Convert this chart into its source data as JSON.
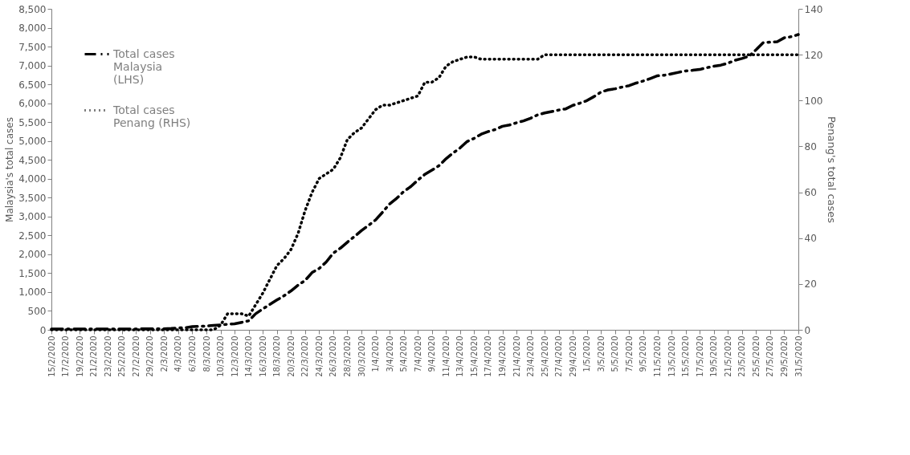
{
  "chart_data": {
    "type": "line",
    "ylabel": "Malaysia's total cases",
    "y2label": "Penang's total cases",
    "x": [
      "2020-02-15",
      "2020-02-16",
      "2020-02-17",
      "2020-02-18",
      "2020-02-19",
      "2020-02-20",
      "2020-02-21",
      "2020-02-22",
      "2020-02-23",
      "2020-02-24",
      "2020-02-25",
      "2020-02-26",
      "2020-02-27",
      "2020-02-28",
      "2020-02-29",
      "2020-03-01",
      "2020-03-02",
      "2020-03-03",
      "2020-03-04",
      "2020-03-05",
      "2020-03-06",
      "2020-03-07",
      "2020-03-08",
      "2020-03-09",
      "2020-03-10",
      "2020-03-11",
      "2020-03-12",
      "2020-03-13",
      "2020-03-14",
      "2020-03-15",
      "2020-03-16",
      "2020-03-17",
      "2020-03-18",
      "2020-03-19",
      "2020-03-20",
      "2020-03-21",
      "2020-03-22",
      "2020-03-23",
      "2020-03-24",
      "2020-03-25",
      "2020-03-26",
      "2020-03-27",
      "2020-03-28",
      "2020-03-29",
      "2020-03-30",
      "2020-03-31",
      "2020-04-01",
      "2020-04-02",
      "2020-04-03",
      "2020-04-04",
      "2020-04-05",
      "2020-04-06",
      "2020-04-07",
      "2020-04-08",
      "2020-04-09",
      "2020-04-10",
      "2020-04-11",
      "2020-04-12",
      "2020-04-13",
      "2020-04-14",
      "2020-04-15",
      "2020-04-16",
      "2020-04-17",
      "2020-04-18",
      "2020-04-19",
      "2020-04-20",
      "2020-04-21",
      "2020-04-22",
      "2020-04-23",
      "2020-04-24",
      "2020-04-25",
      "2020-04-26",
      "2020-04-27",
      "2020-04-28",
      "2020-04-29",
      "2020-04-30",
      "2020-05-01",
      "2020-05-02",
      "2020-05-03",
      "2020-05-04",
      "2020-05-05",
      "2020-05-06",
      "2020-05-07",
      "2020-05-08",
      "2020-05-09",
      "2020-05-10",
      "2020-05-11",
      "2020-05-12",
      "2020-05-13",
      "2020-05-14",
      "2020-05-15",
      "2020-05-16",
      "2020-05-17",
      "2020-05-18",
      "2020-05-19",
      "2020-05-20",
      "2020-05-21",
      "2020-05-22",
      "2020-05-23",
      "2020-05-24",
      "2020-05-25",
      "2020-05-26",
      "2020-05-27",
      "2020-05-28",
      "2020-05-29",
      "2020-05-30",
      "2020-05-31"
    ],
    "series": [
      {
        "name": "Total cases Malaysia (LHS)",
        "color": "#000000",
        "line_style": "dashed",
        "values": [
          22,
          22,
          22,
          22,
          22,
          22,
          22,
          22,
          22,
          22,
          22,
          23,
          23,
          25,
          25,
          29,
          29,
          36,
          50,
          55,
          83,
          93,
          99,
          117,
          129,
          149,
          158,
          197,
          238,
          428,
          553,
          673,
          790,
          900,
          1030,
          1183,
          1306,
          1518,
          1624,
          1796,
          2031,
          2161,
          2320,
          2470,
          2626,
          2766,
          2908,
          3116,
          3333,
          3483,
          3662,
          3793,
          3963,
          4119,
          4228,
          4346,
          4530,
          4683,
          4817,
          4987,
          5072,
          5182,
          5251,
          5305,
          5389,
          5425,
          5482,
          5532,
          5603,
          5691,
          5742,
          5780,
          5820,
          5851,
          5945,
          6002,
          6071,
          6176,
          6298,
          6353,
          6383,
          6428,
          6467,
          6535,
          6589,
          6656,
          6726,
          6742,
          6779,
          6819,
          6855,
          6872,
          6894,
          6941,
          6978,
          7009,
          7059,
          7137,
          7185,
          7245,
          7417,
          7604,
          7619,
          7629,
          7732,
          7762,
          7819
        ]
      },
      {
        "name": "Total cases Penang (RHS)",
        "color": "#000000",
        "line_style": "dotted",
        "axis": "y2",
        "values": [
          0,
          0,
          0,
          0,
          0,
          0,
          0,
          0,
          0,
          0,
          0,
          0,
          0,
          0,
          0,
          0,
          0,
          0,
          0,
          0,
          0,
          0,
          0,
          0,
          2,
          7,
          7,
          7,
          6,
          11,
          16,
          22,
          28,
          31,
          35,
          42,
          52,
          60,
          66,
          68,
          70,
          75,
          83,
          86,
          88,
          92,
          96,
          98,
          98,
          99,
          100,
          101,
          102,
          108,
          108,
          110,
          115,
          117,
          118,
          119,
          119,
          118,
          118,
          118,
          118,
          118,
          118,
          118,
          118,
          118,
          120,
          120,
          120,
          120,
          120,
          120,
          120,
          120,
          120,
          120,
          120,
          120,
          120,
          120,
          120,
          120,
          120,
          120,
          120,
          120,
          120,
          120,
          120,
          120,
          120,
          120,
          120,
          120,
          120,
          120,
          120,
          120,
          120,
          120,
          120,
          120,
          120
        ]
      }
    ],
    "xlim": [
      "2020-02-15",
      "2020-05-31"
    ],
    "xticks": [
      {
        "value": "2020-02-15",
        "label": "15/2/2020"
      },
      {
        "value": "2020-02-17",
        "label": "17/2/2020"
      },
      {
        "value": "2020-02-19",
        "label": "19/2/2020"
      },
      {
        "value": "2020-02-21",
        "label": "21/2/2020"
      },
      {
        "value": "2020-02-23",
        "label": "23/2/2020"
      },
      {
        "value": "2020-02-25",
        "label": "25/2/2020"
      },
      {
        "value": "2020-02-27",
        "label": "27/2/2020"
      },
      {
        "value": "2020-02-29",
        "label": "29/2/2020"
      },
      {
        "value": "2020-03-02",
        "label": "2/3/2020"
      },
      {
        "value": "2020-03-04",
        "label": "4/3/2020"
      },
      {
        "value": "2020-03-06",
        "label": "6/3/2020"
      },
      {
        "value": "2020-03-08",
        "label": "8/3/2020"
      },
      {
        "value": "2020-03-10",
        "label": "10/3/2020"
      },
      {
        "value": "2020-03-12",
        "label": "12/3/2020"
      },
      {
        "value": "2020-03-14",
        "label": "14/3/2020"
      },
      {
        "value": "2020-03-16",
        "label": "16/3/2020"
      },
      {
        "value": "2020-03-18",
        "label": "18/3/2020"
      },
      {
        "value": "2020-03-20",
        "label": "20/3/2020"
      },
      {
        "value": "2020-03-22",
        "label": "22/3/2020"
      },
      {
        "value": "2020-03-24",
        "label": "24/3/2020"
      },
      {
        "value": "2020-03-26",
        "label": "26/3/2020"
      },
      {
        "value": "2020-03-28",
        "label": "28/3/2020"
      },
      {
        "value": "2020-03-30",
        "label": "30/3/2020"
      },
      {
        "value": "2020-04-01",
        "label": "1/4/2020"
      },
      {
        "value": "2020-04-03",
        "label": "3/4/2020"
      },
      {
        "value": "2020-04-05",
        "label": "5/4/2020"
      },
      {
        "value": "2020-04-07",
        "label": "7/4/2020"
      },
      {
        "value": "2020-04-09",
        "label": "9/4/2020"
      },
      {
        "value": "2020-04-11",
        "label": "11/4/2020"
      },
      {
        "value": "2020-04-13",
        "label": "13/4/2020"
      },
      {
        "value": "2020-04-15",
        "label": "15/4/2020"
      },
      {
        "value": "2020-04-17",
        "label": "17/4/2020"
      },
      {
        "value": "2020-04-19",
        "label": "19/4/2020"
      },
      {
        "value": "2020-04-21",
        "label": "21/4/2020"
      },
      {
        "value": "2020-04-23",
        "label": "23/4/2020"
      },
      {
        "value": "2020-04-25",
        "label": "25/4/2020"
      },
      {
        "value": "2020-04-27",
        "label": "27/4/2020"
      },
      {
        "value": "2020-04-29",
        "label": "29/4/2020"
      },
      {
        "value": "2020-05-01",
        "label": "1/5/2020"
      },
      {
        "value": "2020-05-03",
        "label": "3/5/2020"
      },
      {
        "value": "2020-05-05",
        "label": "5/5/2020"
      },
      {
        "value": "2020-05-07",
        "label": "7/5/2020"
      },
      {
        "value": "2020-05-09",
        "label": "9/5/2020"
      },
      {
        "value": "2020-05-11",
        "label": "11/5/2020"
      },
      {
        "value": "2020-05-13",
        "label": "13/5/2020"
      },
      {
        "value": "2020-05-15",
        "label": "15/5/2020"
      },
      {
        "value": "2020-05-17",
        "label": "17/5/2020"
      },
      {
        "value": "2020-05-19",
        "label": "19/5/2020"
      },
      {
        "value": "2020-05-21",
        "label": "21/5/2020"
      },
      {
        "value": "2020-05-23",
        "label": "23/5/2020"
      },
      {
        "value": "2020-05-25",
        "label": "25/5/2020"
      },
      {
        "value": "2020-05-27",
        "label": "27/5/2020"
      },
      {
        "value": "2020-05-29",
        "label": "29/5/2020"
      },
      {
        "value": "2020-05-31",
        "label": "31/5/2020"
      }
    ],
    "ylim": [
      0,
      8500
    ],
    "yticks": [
      0,
      500,
      {
        "value": 1000,
        "label": "1,000"
      },
      {
        "value": 1500,
        "label": "1,500"
      },
      {
        "value": 2000,
        "label": "2,000"
      },
      {
        "value": 2500,
        "label": "2,500"
      },
      {
        "value": 3000,
        "label": "3,000"
      },
      {
        "value": 3500,
        "label": "3,500"
      },
      {
        "value": 4000,
        "label": "4,000"
      },
      {
        "value": 4500,
        "label": "4,500"
      },
      {
        "value": 5000,
        "label": "5,000"
      },
      {
        "value": 5500,
        "label": "5,500"
      },
      {
        "value": 6000,
        "label": "6,000"
      },
      {
        "value": 6500,
        "label": "6,500"
      },
      {
        "value": 7000,
        "label": "7,000"
      },
      {
        "value": 7500,
        "label": "7,500"
      },
      {
        "value": 8000,
        "label": "8,000"
      },
      {
        "value": 8500,
        "label": "8,500"
      }
    ],
    "y2lim": [
      0,
      140
    ],
    "y2ticks": [
      0,
      20,
      40,
      60,
      80,
      100,
      120,
      140
    ],
    "legend": "top left",
    "grid": false
  }
}
